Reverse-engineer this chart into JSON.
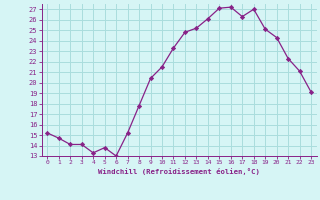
{
  "x": [
    0,
    1,
    2,
    3,
    4,
    5,
    6,
    7,
    8,
    9,
    10,
    11,
    12,
    13,
    14,
    15,
    16,
    17,
    18,
    19,
    20,
    21,
    22,
    23
  ],
  "y": [
    15.2,
    14.7,
    14.1,
    14.1,
    13.3,
    13.8,
    13.0,
    15.2,
    17.8,
    20.4,
    21.5,
    23.3,
    24.8,
    25.2,
    26.1,
    27.1,
    27.2,
    26.3,
    27.0,
    25.1,
    24.3,
    22.3,
    21.1,
    19.1
  ],
  "line_color": "#882288",
  "marker": "D",
  "marker_size": 2.2,
  "bg_color": "#d6f5f5",
  "grid_color": "#aadddd",
  "tick_color": "#882288",
  "label_color": "#882288",
  "xlabel": "Windchill (Refroidissement éolien,°C)",
  "xlim": [
    -0.5,
    23.5
  ],
  "ylim": [
    13,
    27.5
  ],
  "yticks": [
    13,
    14,
    15,
    16,
    17,
    18,
    19,
    20,
    21,
    22,
    23,
    24,
    25,
    26,
    27
  ],
  "xticks": [
    0,
    1,
    2,
    3,
    4,
    5,
    6,
    7,
    8,
    9,
    10,
    11,
    12,
    13,
    14,
    15,
    16,
    17,
    18,
    19,
    20,
    21,
    22,
    23
  ]
}
